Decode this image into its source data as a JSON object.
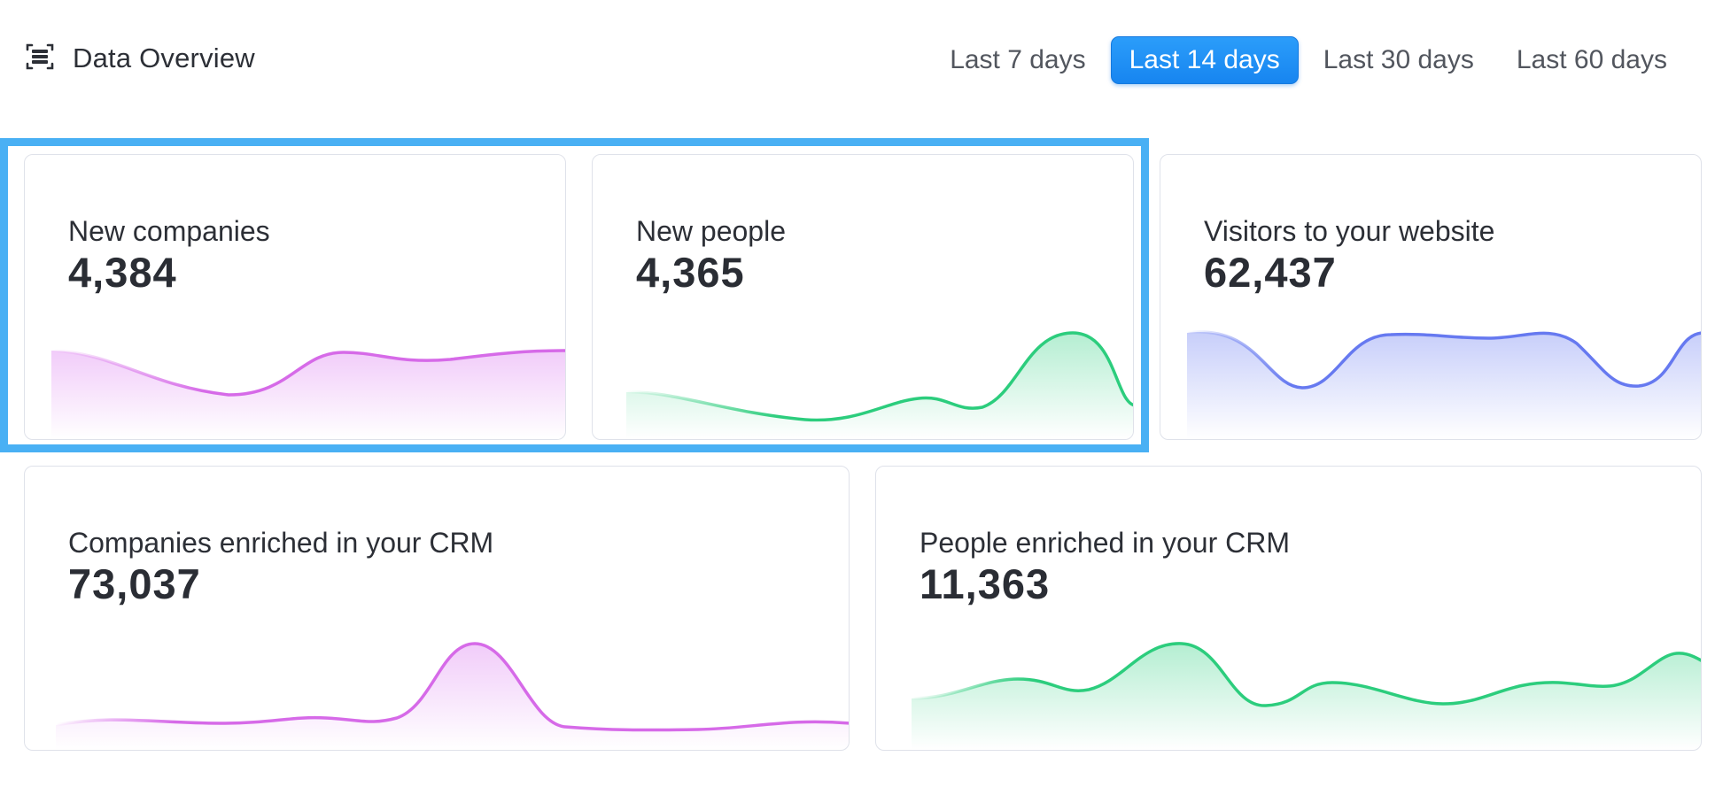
{
  "header": {
    "title": "Data Overview",
    "icon": "list-frame-icon"
  },
  "range_tabs": [
    {
      "label": "Last 7 days",
      "active": false
    },
    {
      "label": "Last 14 days",
      "active": true
    },
    {
      "label": "Last 30 days",
      "active": false
    },
    {
      "label": "Last 60 days",
      "active": false
    }
  ],
  "cards": [
    {
      "title": "New companies",
      "value": "4,384",
      "color": "#d66ae8"
    },
    {
      "title": "New people",
      "value": "4,365",
      "color": "#2ccd7d"
    },
    {
      "title": "Visitors to your website",
      "value": "62,437",
      "color": "#6679f0"
    },
    {
      "title": "Companies enriched in your CRM",
      "value": "73,037",
      "color": "#d66ae8"
    },
    {
      "title": "People enriched in your CRM",
      "value": "11,363",
      "color": "#2ccd7d"
    }
  ],
  "colors": {
    "accent": "#1a88f2",
    "highlight": "#49b0f4"
  }
}
